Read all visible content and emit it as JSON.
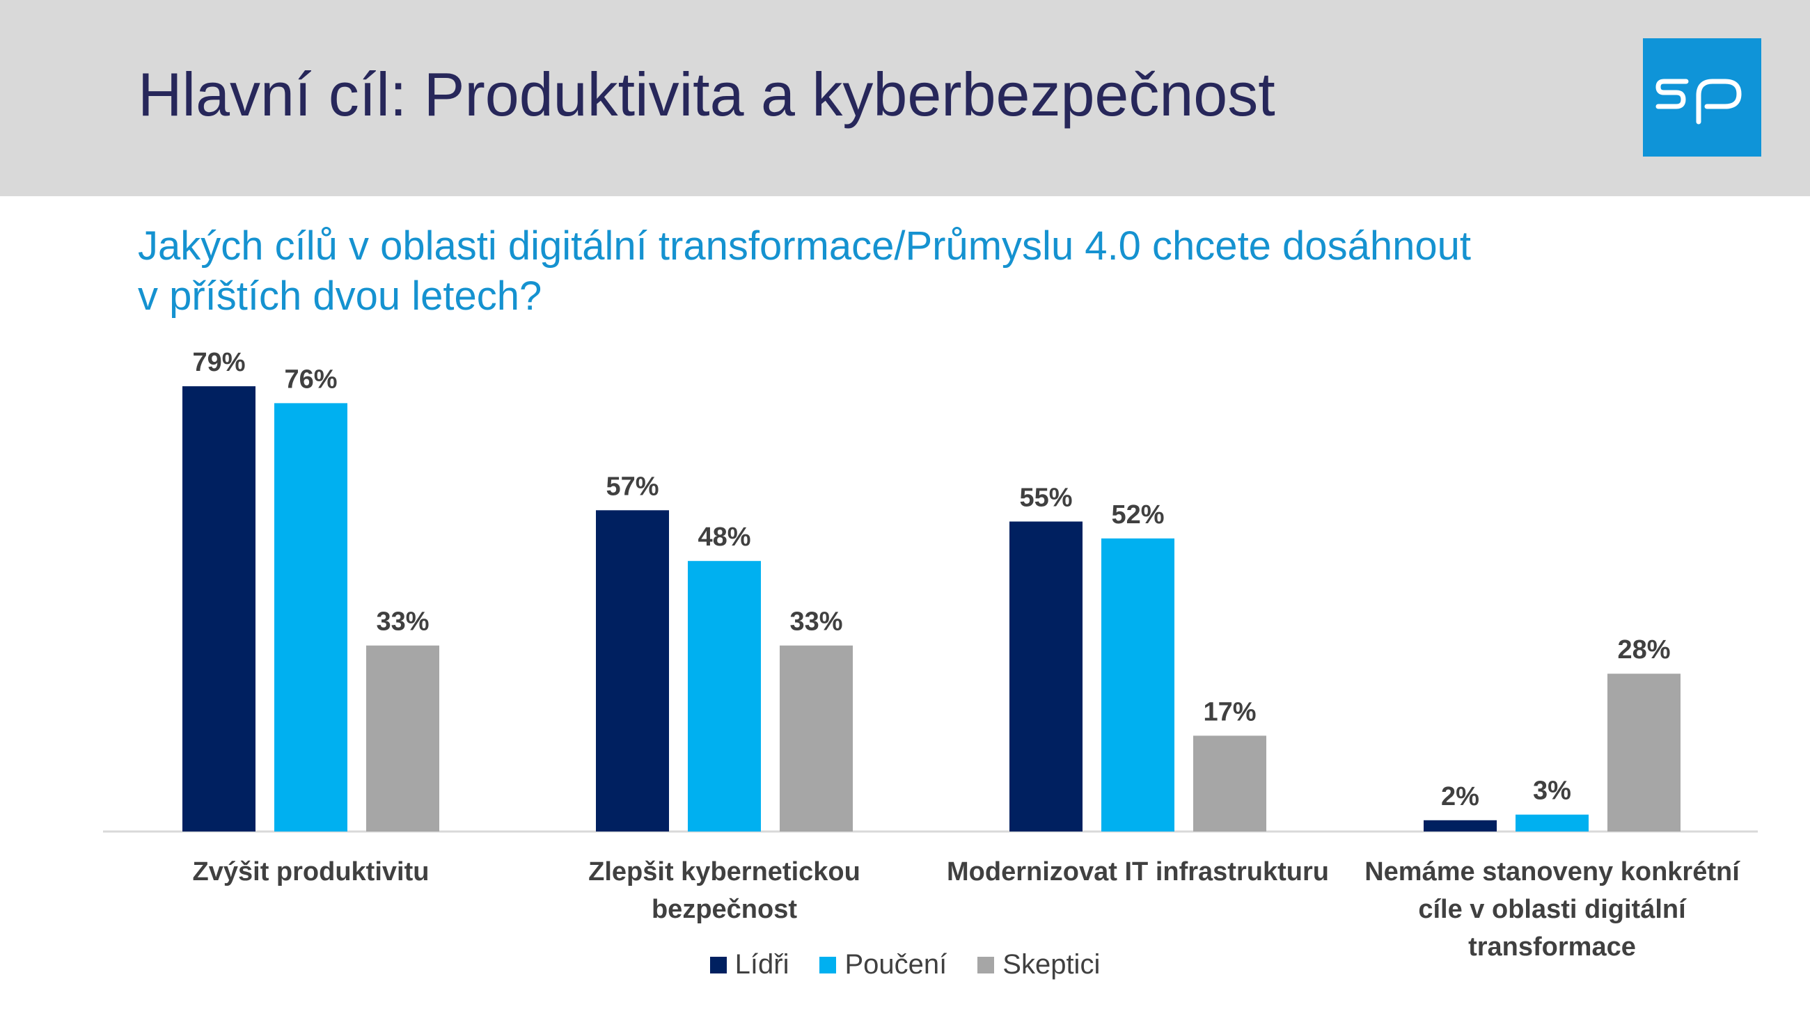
{
  "header": {
    "title": "Hlavní cíl: Produktivita a kyberbezpečnost",
    "logo_text": "sp",
    "logo_color": "#0f94d8",
    "band_color": "#d9d9d9"
  },
  "question": {
    "line1": "Jakých cílů v oblasti digitální transformace/Průmyslu 4.0 chcete dosáhnout",
    "line2": "v příštích dvou letech?"
  },
  "chart_data": {
    "type": "bar",
    "categories": [
      [
        "Zvýšit produktivitu"
      ],
      [
        "Zlepšit kybernetickou",
        "bezpečnost"
      ],
      [
        "Modernizovat IT infrastrukturu"
      ],
      [
        "Nemáme stanoveny konkrétní",
        "cíle v oblasti digitální",
        "transformace"
      ]
    ],
    "series": [
      {
        "name": "Lídři",
        "color": "#002060",
        "values": [
          79,
          57,
          55,
          2
        ],
        "labels": [
          "79%",
          "57%",
          "55%",
          "2%"
        ]
      },
      {
        "name": "Poučení",
        "color": "#00b0f0",
        "values": [
          76,
          48,
          52,
          3
        ],
        "labels": [
          "76%",
          "48%",
          "52%",
          "3%"
        ]
      },
      {
        "name": "Skeptici",
        "color": "#a6a6a6",
        "values": [
          33,
          33,
          17,
          28
        ],
        "labels": [
          "33%",
          "33%",
          "17%",
          "28%"
        ]
      }
    ],
    "ylim": [
      0,
      100
    ],
    "grid": false,
    "legend_position": "bottom"
  }
}
